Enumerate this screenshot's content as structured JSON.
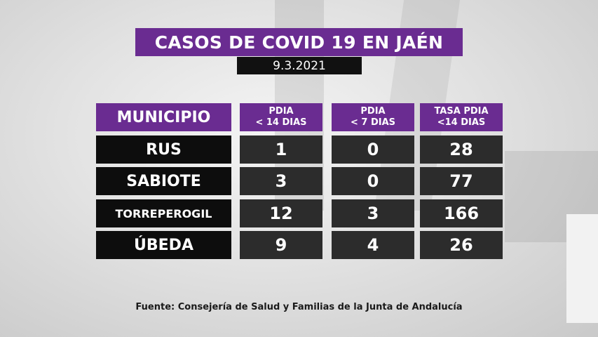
{
  "title": "CASOS DE COVID 19 EN JAÉN",
  "date": "9.3.2021",
  "columns": [
    {
      "line1": "MUNICIPIO",
      "line2": ""
    },
    {
      "line1": "PDIA",
      "line2": "< 14 DIAS"
    },
    {
      "line1": "PDIA",
      "line2": "< 7 DIAS"
    },
    {
      "line1": "TASA PDIA",
      "line2": "<14 DIAS"
    }
  ],
  "rows": [
    {
      "municipio": "RUS",
      "pdia14": "1",
      "pdia7": "0",
      "tasa14": "28"
    },
    {
      "municipio": "SABIOTE",
      "pdia14": "3",
      "pdia7": "0",
      "tasa14": "77"
    },
    {
      "municipio": "TORREPEROGIL",
      "pdia14": "12",
      "pdia7": "3",
      "tasa14": "166"
    },
    {
      "municipio": "ÚBEDA",
      "pdia14": "9",
      "pdia7": "4",
      "tasa14": "26"
    }
  ],
  "source": "Fuente: Consejería de Salud y Familias de la Junta de Andalucía",
  "colors": {
    "header": "#6a2c91",
    "name_bg": "#0d0d0d",
    "value_bg": "#2c2c2c"
  }
}
